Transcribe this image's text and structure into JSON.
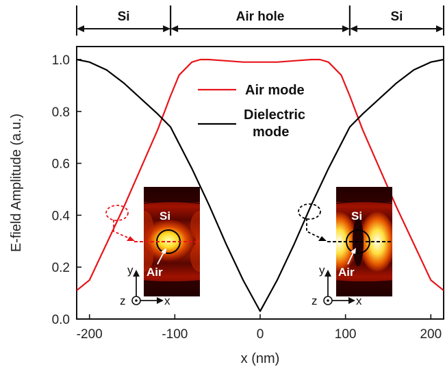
{
  "chart_data": {
    "type": "line",
    "xlabel": "x (nm)",
    "ylabel": "E-field Amplitude (a.u.)",
    "xlim": [
      -215,
      215
    ],
    "ylim": [
      0.0,
      1.05
    ],
    "x_ticks": [
      -200,
      -100,
      0,
      100,
      200
    ],
    "x_tick_labels": [
      "-200",
      "-100",
      "0",
      "100",
      "200"
    ],
    "y_ticks": [
      0.0,
      0.2,
      0.4,
      0.6,
      0.8,
      1.0
    ],
    "y_tick_labels": [
      "0.0",
      "0.2",
      "0.4",
      "0.6",
      "0.8",
      "1.0"
    ],
    "grid": false,
    "series": [
      {
        "name": "Air mode",
        "color": "#e8141a",
        "x": [
          -215,
          -200,
          -180,
          -160,
          -140,
          -120,
          -105,
          -95,
          -80,
          -70,
          -60,
          -40,
          -20,
          0,
          20,
          40,
          60,
          70,
          80,
          95,
          105,
          120,
          140,
          160,
          180,
          200,
          215
        ],
        "y": [
          0.11,
          0.15,
          0.29,
          0.43,
          0.58,
          0.73,
          0.86,
          0.94,
          0.99,
          1.0,
          1.0,
          0.995,
          0.99,
          0.99,
          0.99,
          0.995,
          1.0,
          1.0,
          0.99,
          0.94,
          0.86,
          0.73,
          0.58,
          0.43,
          0.29,
          0.15,
          0.11
        ]
      },
      {
        "name": "Dielectric mode",
        "color": "#000000",
        "x": [
          -215,
          -200,
          -180,
          -160,
          -140,
          -120,
          -105,
          -80,
          -60,
          -40,
          -20,
          0,
          20,
          40,
          60,
          80,
          105,
          120,
          140,
          160,
          180,
          200,
          215
        ],
        "y": [
          1.0,
          0.99,
          0.96,
          0.91,
          0.85,
          0.79,
          0.74,
          0.58,
          0.44,
          0.29,
          0.15,
          0.03,
          0.15,
          0.29,
          0.44,
          0.58,
          0.74,
          0.79,
          0.85,
          0.91,
          0.96,
          0.99,
          1.0
        ]
      }
    ],
    "legend": {
      "placement": "top-center",
      "entries": [
        "Air mode",
        "Dielectric\nmode"
      ]
    },
    "regions": [
      {
        "label": "Si",
        "from": -215,
        "to": -105
      },
      {
        "label": "Air hole",
        "from": -105,
        "to": 105
      },
      {
        "label": "Si",
        "from": 105,
        "to": 215
      }
    ],
    "insets": [
      {
        "mode": "Air mode",
        "pointer_color": "#e8141a",
        "material_label": "Si",
        "hole_label": "Air",
        "coord_labels": {
          "y": "y",
          "z": "z",
          "x": "x"
        }
      },
      {
        "mode": "Dielectric mode",
        "pointer_color": "#000000",
        "material_label": "Si",
        "hole_label": "Air",
        "coord_labels": {
          "y": "y",
          "z": "z",
          "x": "x"
        }
      }
    ]
  }
}
